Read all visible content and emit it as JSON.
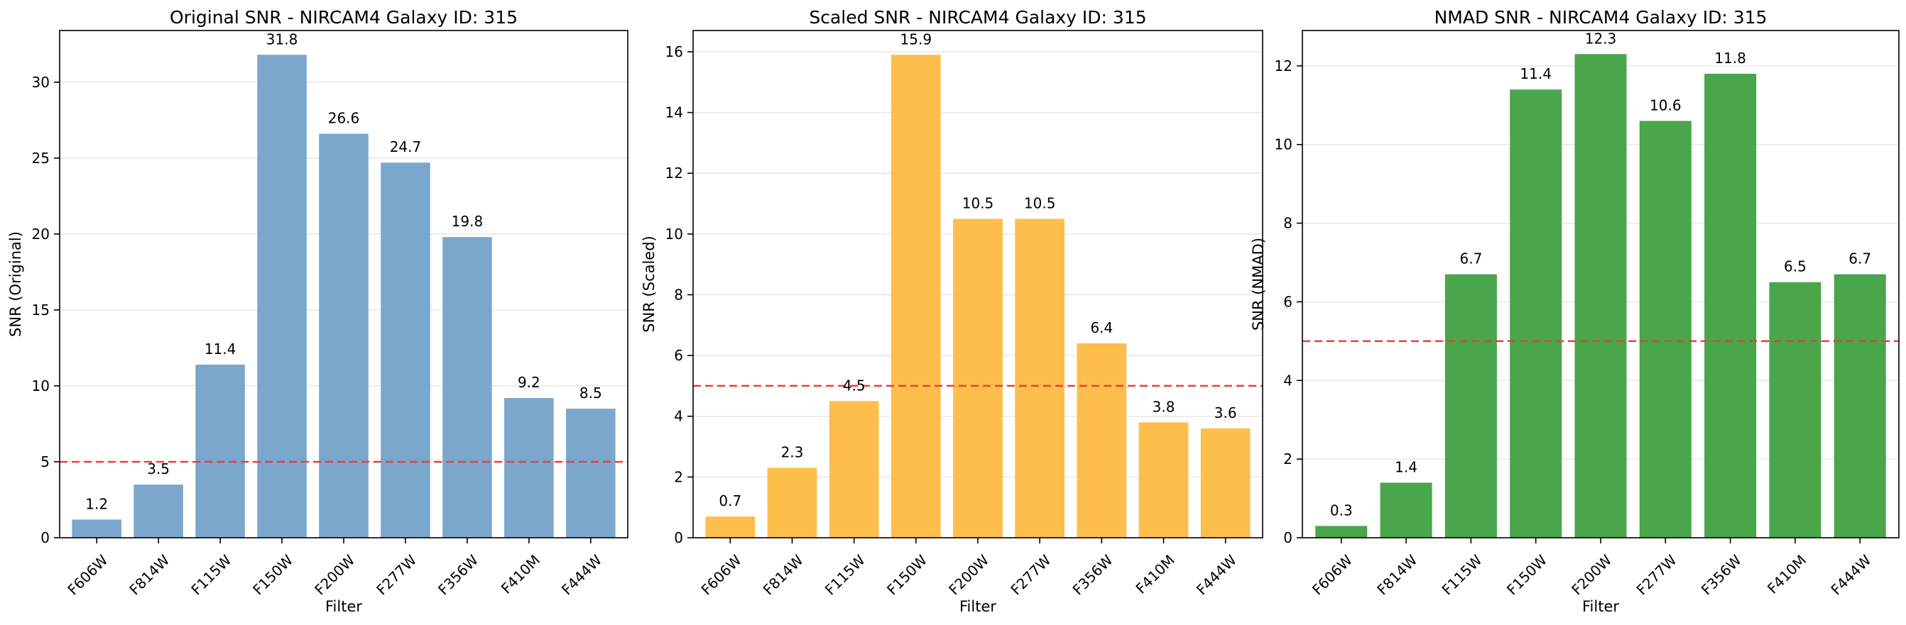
{
  "chart_data": [
    {
      "type": "bar",
      "title": "Original SNR - NIRCAM4 Galaxy ID: 315",
      "xlabel": "Filter",
      "ylabel": "SNR (Original)",
      "categories": [
        "F606W",
        "F814W",
        "F115W",
        "F150W",
        "F200W",
        "F277W",
        "F356W",
        "F410M",
        "F444W"
      ],
      "values": [
        1.2,
        3.5,
        11.4,
        31.8,
        26.6,
        24.7,
        19.8,
        9.2,
        8.5
      ],
      "data_labels": [
        "1.2",
        "3.5",
        "11.4",
        "31.8",
        "26.6",
        "24.7",
        "19.8",
        "9.2",
        "8.5"
      ],
      "ylim": [
        0,
        33.4
      ],
      "yticks": [
        0,
        5,
        10,
        15,
        20,
        25,
        30
      ],
      "threshold": 5,
      "bar_color": "#7ba7cc",
      "threshold_color": "#e8403a",
      "grid": "y"
    },
    {
      "type": "bar",
      "title": "Scaled SNR - NIRCAM4 Galaxy ID: 315",
      "xlabel": "Filter",
      "ylabel": "SNR (Scaled)",
      "categories": [
        "F606W",
        "F814W",
        "F115W",
        "F150W",
        "F200W",
        "F277W",
        "F356W",
        "F410M",
        "F444W"
      ],
      "values": [
        0.7,
        2.3,
        4.5,
        15.9,
        10.5,
        10.5,
        6.4,
        3.8,
        3.6
      ],
      "data_labels": [
        "0.7",
        "2.3",
        "4.5",
        "15.9",
        "10.5",
        "10.5",
        "6.4",
        "3.8",
        "3.6"
      ],
      "ylim": [
        0,
        16.7
      ],
      "yticks": [
        0,
        2,
        4,
        6,
        8,
        10,
        12,
        14,
        16
      ],
      "threshold": 5,
      "bar_color": "#fdbe4c",
      "threshold_color": "#e8403a",
      "grid": "y"
    },
    {
      "type": "bar",
      "title": "NMAD SNR - NIRCAM4 Galaxy ID: 315",
      "xlabel": "Filter",
      "ylabel": "SNR (NMAD)",
      "categories": [
        "F606W",
        "F814W",
        "F115W",
        "F150W",
        "F200W",
        "F277W",
        "F356W",
        "F410M",
        "F444W"
      ],
      "values": [
        0.3,
        1.4,
        6.7,
        11.4,
        12.3,
        10.6,
        11.8,
        6.5,
        6.7
      ],
      "data_labels": [
        "0.3",
        "1.4",
        "6.7",
        "11.4",
        "12.3",
        "10.6",
        "11.8",
        "6.5",
        "6.7"
      ],
      "ylim": [
        0,
        12.9
      ],
      "yticks": [
        0,
        2,
        4,
        6,
        8,
        10,
        12
      ],
      "threshold": 5,
      "bar_color": "#4aa64a",
      "threshold_color": "#e8403a",
      "grid": "y"
    }
  ]
}
